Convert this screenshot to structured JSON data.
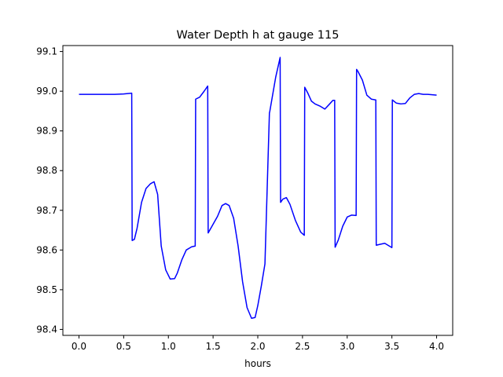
{
  "chart_data": {
    "type": "line",
    "title": "Water Depth h at gauge 115",
    "xlabel": "hours",
    "ylabel": "",
    "xlim": [
      -0.18,
      4.18
    ],
    "ylim": [
      98.385,
      99.115
    ],
    "xticks": [
      0.0,
      0.5,
      1.0,
      1.5,
      2.0,
      2.5,
      3.0,
      3.5,
      4.0
    ],
    "xtick_labels": [
      "0.0",
      "0.5",
      "1.0",
      "1.5",
      "2.0",
      "2.5",
      "3.0",
      "3.5",
      "4.0"
    ],
    "yticks": [
      98.4,
      98.5,
      98.6,
      98.7,
      98.8,
      98.9,
      99.0,
      99.1
    ],
    "ytick_labels": [
      "98.4",
      "98.5",
      "98.6",
      "98.7",
      "98.8",
      "98.9",
      "99.0",
      "99.1"
    ],
    "grid": false,
    "line_color": "#0000ff",
    "series": [
      {
        "x": [
          0.0,
          0.2,
          0.4,
          0.5,
          0.59,
          0.595,
          0.62,
          0.65,
          0.7,
          0.75,
          0.8,
          0.84,
          0.88,
          0.92,
          0.97,
          1.02,
          1.07,
          1.1,
          1.15,
          1.2,
          1.26,
          1.3,
          1.305,
          1.35,
          1.4,
          1.44,
          1.445,
          1.5,
          1.55,
          1.6,
          1.64,
          1.68,
          1.73,
          1.78,
          1.83,
          1.88,
          1.93,
          1.97,
          2.0,
          2.04,
          2.08,
          2.13,
          2.135,
          2.2,
          2.25,
          2.255,
          2.28,
          2.32,
          2.36,
          2.42,
          2.48,
          2.52,
          2.525,
          2.56,
          2.6,
          2.64,
          2.7,
          2.75,
          2.8,
          2.84,
          2.86,
          2.865,
          2.9,
          2.95,
          3.0,
          3.05,
          3.1,
          3.105,
          3.12,
          3.17,
          3.22,
          3.27,
          3.32,
          3.325,
          3.36,
          3.42,
          3.5,
          3.505,
          3.55,
          3.6,
          3.65,
          3.7,
          3.75,
          3.8,
          3.85,
          3.9,
          4.0
        ],
        "y": [
          98.992,
          98.992,
          98.992,
          98.993,
          98.995,
          98.624,
          98.627,
          98.655,
          98.72,
          98.755,
          98.767,
          98.772,
          98.74,
          98.61,
          98.55,
          98.527,
          98.528,
          98.542,
          98.575,
          98.6,
          98.608,
          98.61,
          98.98,
          98.985,
          99.0,
          99.013,
          98.643,
          98.665,
          98.685,
          98.712,
          98.717,
          98.712,
          98.68,
          98.61,
          98.52,
          98.455,
          98.428,
          98.43,
          98.46,
          98.51,
          98.565,
          98.945,
          98.95,
          99.035,
          99.085,
          98.72,
          98.728,
          98.732,
          98.715,
          98.675,
          98.645,
          98.637,
          99.01,
          98.995,
          98.975,
          98.968,
          98.962,
          98.955,
          98.967,
          98.977,
          98.977,
          98.607,
          98.625,
          98.66,
          98.683,
          98.688,
          98.687,
          99.055,
          99.05,
          99.028,
          98.99,
          98.98,
          98.978,
          98.612,
          98.614,
          98.617,
          98.606,
          98.978,
          98.97,
          98.968,
          98.969,
          98.983,
          98.992,
          98.994,
          98.992,
          98.992,
          98.99
        ]
      }
    ]
  }
}
